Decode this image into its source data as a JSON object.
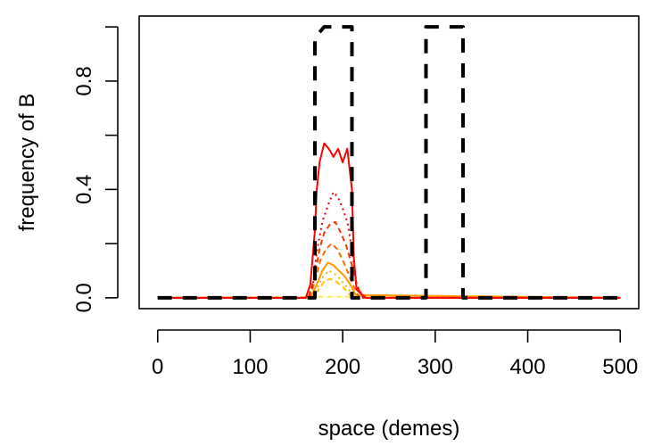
{
  "chart_data": {
    "type": "line",
    "title": "",
    "xlabel": "space (demes)",
    "ylabel": "frequency of B",
    "xlim": [
      -20,
      520
    ],
    "ylim": [
      -0.04,
      1.04
    ],
    "xticks": [
      0,
      100,
      200,
      300,
      400,
      500
    ],
    "xtick_labels": [
      "0",
      "100",
      "200",
      "300",
      "400",
      "500"
    ],
    "yticks": [
      0.0,
      0.2,
      0.4,
      0.6,
      0.8,
      1.0
    ],
    "ytick_labels": [
      "0.0",
      "",
      "0.4",
      "",
      "0.8",
      ""
    ],
    "grid": false,
    "legend": "none",
    "series": [
      {
        "style": "dashed",
        "color": "#000000",
        "width": 4,
        "x": [
          0,
          170,
          170,
          180,
          210,
          210,
          290,
          290,
          330,
          330,
          500
        ],
        "y": [
          0,
          0,
          0.96,
          1.0,
          1.0,
          0,
          0,
          1.0,
          1.0,
          0,
          0
        ]
      },
      {
        "style": "solid",
        "color": "#ff0000",
        "width": 2,
        "x": [
          0,
          160,
          165,
          170,
          172,
          175,
          180,
          185,
          190,
          195,
          200,
          205,
          210,
          212,
          215,
          225,
          500
        ],
        "y": [
          0,
          0,
          0.05,
          0.25,
          0.4,
          0.5,
          0.57,
          0.55,
          0.52,
          0.55,
          0.5,
          0.55,
          0.4,
          0.15,
          0.03,
          0,
          0
        ]
      },
      {
        "style": "dotted",
        "color": "#e60000",
        "width": 2,
        "x": [
          0,
          162,
          168,
          172,
          178,
          185,
          190,
          195,
          200,
          205,
          210,
          215,
          222,
          500
        ],
        "y": [
          0,
          0,
          0.05,
          0.17,
          0.28,
          0.35,
          0.39,
          0.37,
          0.33,
          0.28,
          0.18,
          0.05,
          0,
          0
        ]
      },
      {
        "style": "dashed",
        "color": "#f03a00",
        "width": 2,
        "x": [
          0,
          163,
          170,
          175,
          180,
          186,
          192,
          198,
          204,
          210,
          216,
          222,
          500
        ],
        "y": [
          0,
          0,
          0.08,
          0.18,
          0.24,
          0.27,
          0.28,
          0.24,
          0.19,
          0.12,
          0.04,
          0,
          0
        ]
      },
      {
        "style": "dashed",
        "color": "#f86a00",
        "width": 2,
        "x": [
          0,
          164,
          170,
          176,
          182,
          188,
          194,
          200,
          206,
          212,
          218,
          500
        ],
        "y": [
          0,
          0,
          0.06,
          0.14,
          0.18,
          0.2,
          0.18,
          0.14,
          0.09,
          0.04,
          0,
          0
        ]
      },
      {
        "style": "solid",
        "color": "#ff9900",
        "width": 2,
        "x": [
          0,
          165,
          172,
          178,
          184,
          190,
          196,
          202,
          208,
          214,
          500
        ],
        "y": [
          0,
          0,
          0.05,
          0.1,
          0.13,
          0.12,
          0.1,
          0.08,
          0.05,
          0.01,
          0
        ]
      },
      {
        "style": "dotted",
        "color": "#ffb000",
        "width": 2,
        "x": [
          0,
          166,
          173,
          179,
          185,
          191,
          197,
          204,
          212,
          500
        ],
        "y": [
          0,
          0,
          0.04,
          0.08,
          0.1,
          0.09,
          0.07,
          0.04,
          0.01,
          0
        ]
      },
      {
        "style": "dashed",
        "color": "#ffc400",
        "width": 2,
        "x": [
          0,
          167,
          174,
          180,
          186,
          193,
          200,
          208,
          500
        ],
        "y": [
          0,
          0,
          0.03,
          0.06,
          0.07,
          0.06,
          0.04,
          0.01,
          0
        ]
      },
      {
        "style": "dashed",
        "color": "#ffee55",
        "width": 2,
        "x": [
          0,
          150,
          200,
          280,
          500
        ],
        "y": [
          0,
          0.003,
          0.004,
          0.002,
          0
        ]
      }
    ]
  }
}
